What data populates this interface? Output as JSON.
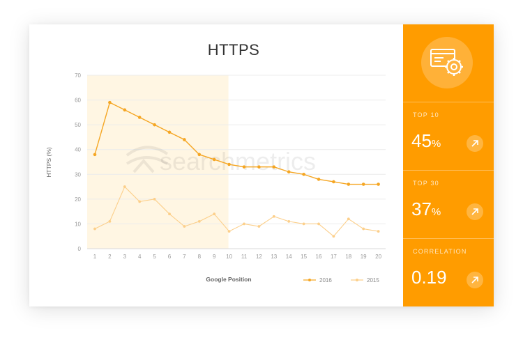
{
  "chart_data": {
    "type": "line",
    "title": "HTTPS",
    "xlabel": "Google Position",
    "ylabel": "HTTPS (%)",
    "ylim": [
      0,
      70
    ],
    "yticks": [
      0,
      10,
      20,
      30,
      40,
      50,
      60,
      70
    ],
    "categories": [
      "1",
      "2",
      "3",
      "4",
      "5",
      "6",
      "7",
      "8",
      "9",
      "10",
      "11",
      "12",
      "13",
      "14",
      "15",
      "16",
      "17",
      "18",
      "19",
      "20"
    ],
    "highlight_range": [
      "1",
      "10"
    ],
    "series": [
      {
        "name": "2016",
        "color": "#f5a623",
        "values": [
          38,
          59,
          56,
          53,
          50,
          47,
          44,
          38,
          36,
          34,
          33,
          33,
          33,
          31,
          30,
          28,
          27,
          26,
          26,
          26
        ]
      },
      {
        "name": "2015",
        "color": "#fccf8a",
        "values": [
          8,
          11,
          25,
          19,
          20,
          14,
          9,
          11,
          14,
          7,
          10,
          9,
          13,
          11,
          10,
          10,
          5,
          12,
          8,
          7
        ]
      }
    ],
    "legend_position": "bottom-right",
    "grid": true
  },
  "watermark": "searchmetrics",
  "side_panel": {
    "icon": "settings-window-icon",
    "stats": [
      {
        "label": "TOP 10",
        "value": "45",
        "unit": "%"
      },
      {
        "label": "TOP 30",
        "value": "37",
        "unit": "%"
      },
      {
        "label": "CORRELATION",
        "value": "0.19",
        "unit": ""
      }
    ]
  }
}
